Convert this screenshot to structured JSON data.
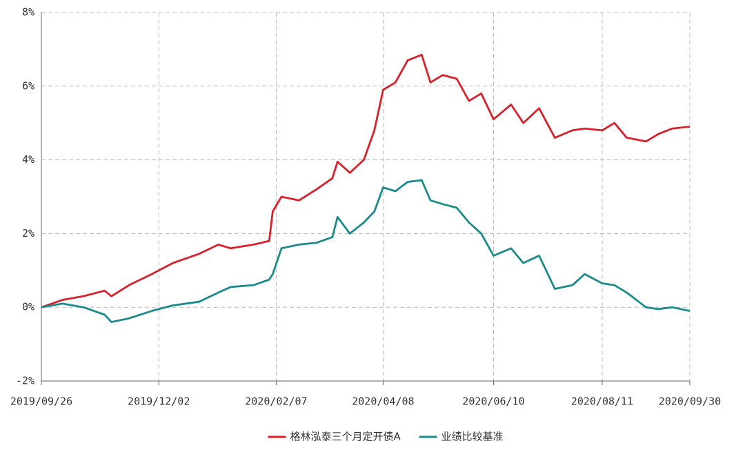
{
  "chart_data": {
    "type": "line",
    "x": [
      "2019/09/26",
      "2019/10/08",
      "2019/10/20",
      "2019/11/01",
      "2019/11/05",
      "2019/11/15",
      "2019/11/28",
      "2019/12/10",
      "2019/12/25",
      "2020/01/05",
      "2020/01/12",
      "2020/01/25",
      "2020/02/03",
      "2020/02/05",
      "2020/02/10",
      "2020/02/20",
      "2020/03/01",
      "2020/03/10",
      "2020/03/13",
      "2020/03/20",
      "2020/03/28",
      "2020/04/03",
      "2020/04/08",
      "2020/04/15",
      "2020/04/22",
      "2020/04/30",
      "2020/05/05",
      "2020/05/12",
      "2020/05/20",
      "2020/05/27",
      "2020/06/03",
      "2020/06/10",
      "2020/06/20",
      "2020/06/27",
      "2020/07/06",
      "2020/07/15",
      "2020/07/25",
      "2020/08/01",
      "2020/08/11",
      "2020/08/18",
      "2020/08/25",
      "2020/09/05",
      "2020/09/12",
      "2020/09/20",
      "2020/09/30"
    ],
    "series": [
      {
        "name": "格林泓泰三个月定开债A",
        "color": "#d9202a",
        "values": [
          0,
          0.2,
          0.3,
          0.45,
          0.3,
          0.6,
          0.9,
          1.2,
          1.45,
          1.7,
          1.6,
          1.7,
          1.8,
          2.6,
          3.0,
          2.9,
          3.2,
          3.5,
          3.95,
          3.65,
          4.0,
          4.8,
          5.9,
          6.1,
          6.7,
          6.85,
          6.1,
          6.3,
          6.2,
          5.6,
          5.8,
          5.1,
          5.5,
          5.0,
          5.4,
          4.6,
          4.8,
          4.85,
          4.8,
          5.0,
          4.6,
          4.5,
          4.7,
          4.85,
          4.9
        ]
      },
      {
        "name": "业绩比较基准",
        "color": "#1a8a8a",
        "values": [
          0,
          0.1,
          0,
          -0.2,
          -0.4,
          -0.3,
          -0.1,
          0.05,
          0.15,
          0.4,
          0.55,
          0.6,
          0.75,
          0.9,
          1.6,
          1.7,
          1.75,
          1.9,
          2.45,
          2.0,
          2.3,
          2.6,
          3.25,
          3.15,
          3.4,
          3.45,
          2.9,
          2.8,
          2.7,
          2.3,
          2.0,
          1.4,
          1.6,
          1.2,
          1.4,
          0.5,
          0.6,
          0.9,
          0.65,
          0.6,
          0.4,
          0,
          -0.05,
          0,
          -0.1
        ]
      }
    ],
    "xlim": [
      "2019/09/26",
      "2020/09/30"
    ],
    "xticks": [
      "2019/09/26",
      "2019/12/02",
      "2020/02/07",
      "2020/04/08",
      "2020/06/10",
      "2020/08/11",
      "2020/09/30"
    ],
    "ylim": [
      -2,
      8
    ],
    "yticks": [
      {
        "value": -2,
        "label": "-2%"
      },
      {
        "value": 0,
        "label": "0%"
      },
      {
        "value": 2,
        "label": "2%"
      },
      {
        "value": 4,
        "label": "4%"
      },
      {
        "value": 6,
        "label": "6%"
      },
      {
        "value": 8,
        "label": "8%"
      }
    ],
    "grid": true,
    "legend": "bottom"
  }
}
